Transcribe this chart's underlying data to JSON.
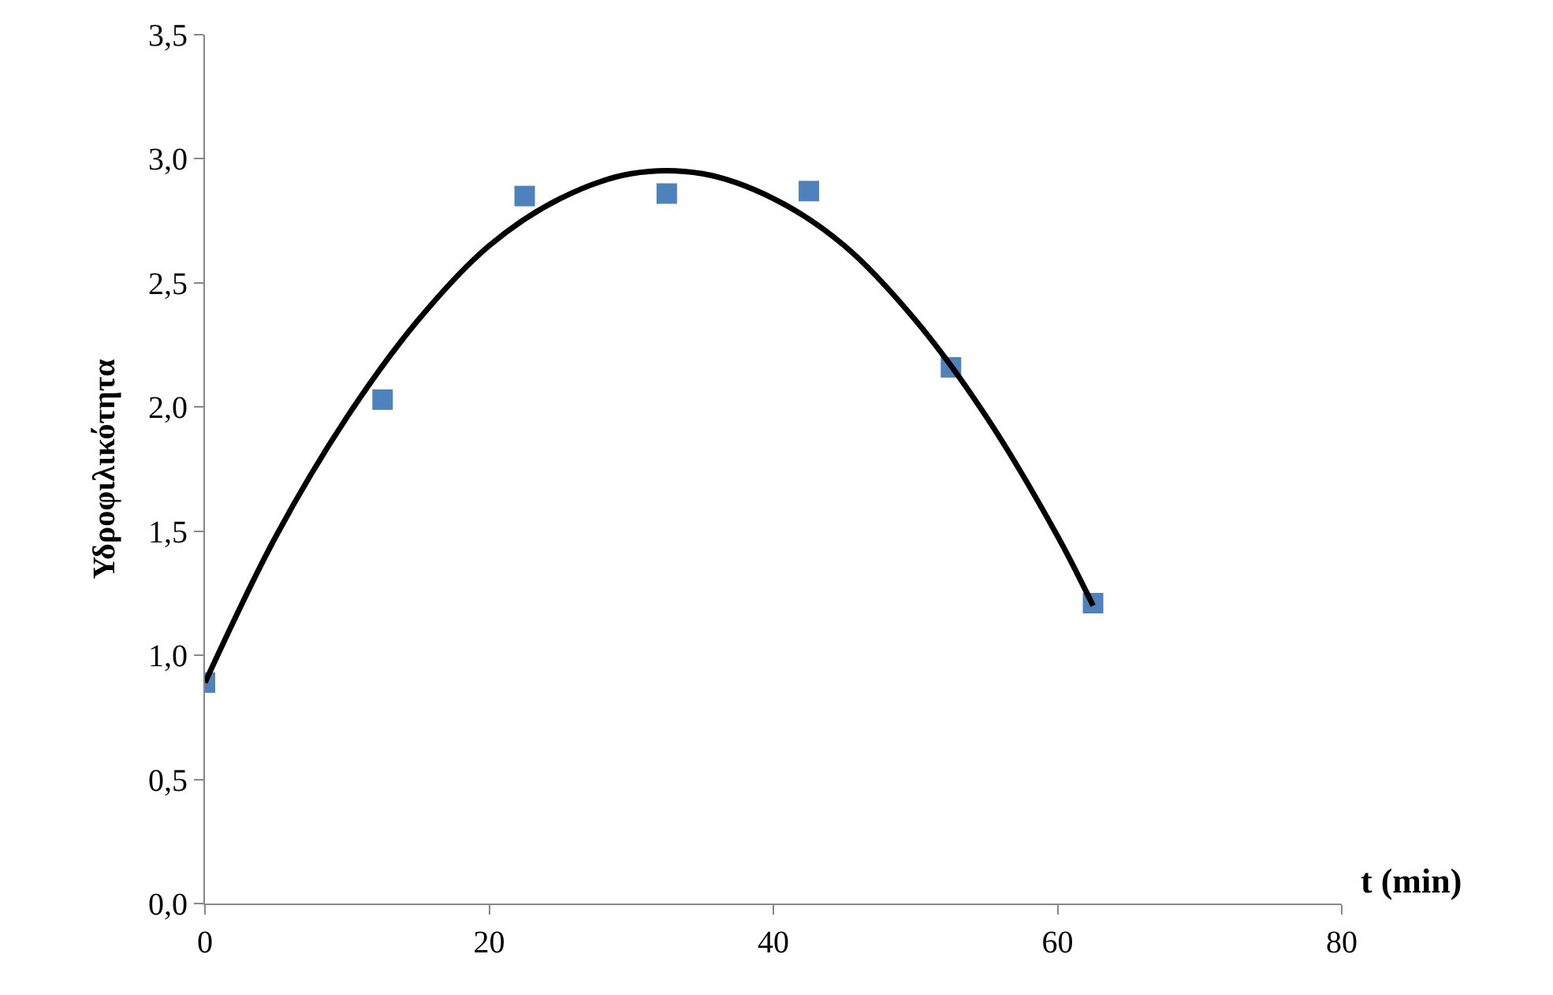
{
  "chart_data": {
    "type": "scatter",
    "xlabel": "t (min)",
    "ylabel": "Υδροφιλικότητα",
    "xlim": [
      0,
      80
    ],
    "xticks": [
      0,
      20,
      40,
      60,
      80
    ],
    "ylim": [
      0,
      3.5
    ],
    "yticks": [
      {
        "value": 0,
        "label": "0,0"
      },
      {
        "value": 0.5,
        "label": "0,5"
      },
      {
        "value": 1,
        "label": "1,0"
      },
      {
        "value": 1.5,
        "label": "1,5"
      },
      {
        "value": 2,
        "label": "2,0"
      },
      {
        "value": 2.5,
        "label": "2,5"
      },
      {
        "value": 3,
        "label": "3,0"
      },
      {
        "value": 3.5,
        "label": "3,5"
      }
    ],
    "legend": false,
    "series": [
      {
        "marker": "square",
        "color": "#4f81bd",
        "x": [
          0,
          12.5,
          22.5,
          32.5,
          42.5,
          52.5,
          62.5
        ],
        "values": [
          0.89,
          2.03,
          2.85,
          2.86,
          2.87,
          2.16,
          1.21
        ]
      },
      {
        "type": "line",
        "color": "#000000",
        "line_style": "solid",
        "x": [
          0,
          5,
          10,
          15,
          20,
          25,
          30,
          35,
          40,
          45,
          50,
          55,
          60,
          62.5
        ],
        "values": [
          0.89,
          1.48,
          1.96,
          2.35,
          2.65,
          2.84,
          2.94,
          2.94,
          2.84,
          2.65,
          2.35,
          1.96,
          1.48,
          1.2
        ]
      }
    ]
  }
}
